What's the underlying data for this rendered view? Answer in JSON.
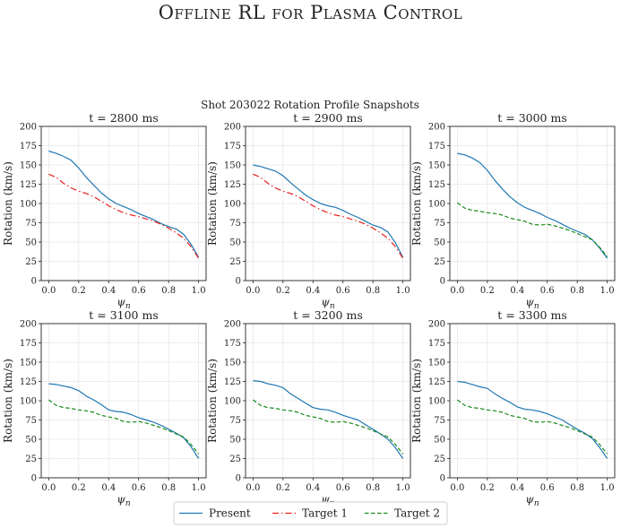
{
  "page_title": "Offline RL for Plasma Control",
  "chart_data": {
    "type": "line",
    "suptitle": "Shot 203022 Rotation Profile Snapshots",
    "xlabel": "ψn",
    "xlabel_base": "ψ",
    "xlabel_sub": "n",
    "ylabel": "Rotation (km/s)",
    "xlim": [
      -0.05,
      1.05
    ],
    "ylim": [
      0,
      200
    ],
    "xticks": [
      0.0,
      0.2,
      0.4,
      0.6,
      0.8,
      1.0
    ],
    "xtick_labels": [
      "0.0",
      "0.2",
      "0.4",
      "0.6",
      "0.8",
      "1.0"
    ],
    "yticks": [
      0,
      25,
      50,
      75,
      100,
      125,
      150,
      175,
      200
    ],
    "grid": true,
    "legend": {
      "placement": "bottom-center",
      "entries": [
        {
          "label": "Present",
          "color": "#1f77b4",
          "style": "solid"
        },
        {
          "label": "Target 1",
          "color": "#e8221e",
          "style": "dashdot"
        },
        {
          "label": "Target 2",
          "color": "#1a8a1a",
          "style": "dashed"
        }
      ]
    },
    "x": [
      0.0,
      0.05,
      0.1,
      0.15,
      0.2,
      0.25,
      0.3,
      0.35,
      0.4,
      0.45,
      0.5,
      0.55,
      0.6,
      0.65,
      0.7,
      0.75,
      0.8,
      0.85,
      0.9,
      0.95,
      1.0
    ],
    "panels": [
      {
        "title": "t = 2800 ms",
        "series": [
          {
            "name": "Present",
            "values": [
              168,
              165,
              161,
              156,
              146,
              134,
              124,
              114,
              106,
              100,
              96,
              92,
              87,
              83,
              79,
              74,
              70,
              67,
              60,
              47,
              30
            ]
          },
          {
            "name": "Target 1",
            "values": [
              138,
              134,
              126,
              120,
              116,
              113,
              109,
              103,
              97,
              92,
              88,
              85,
              83,
              80,
              77,
              73,
              68,
              62,
              55,
              44,
              29
            ]
          }
        ]
      },
      {
        "title": "t = 2900 ms",
        "series": [
          {
            "name": "Present",
            "values": [
              150,
              148,
              145,
              142,
              136,
              127,
              119,
              111,
              105,
              100,
              97,
              95,
              91,
              86,
              82,
              77,
              72,
              69,
              63,
              49,
              30
            ]
          },
          {
            "name": "Target 1",
            "values": [
              138,
              134,
              126,
              120,
              116,
              113,
              109,
              103,
              97,
              92,
              88,
              85,
              83,
              80,
              77,
              73,
              68,
              62,
              55,
              44,
              29
            ]
          }
        ]
      },
      {
        "title": "t = 3000 ms",
        "series": [
          {
            "name": "Present",
            "values": [
              165,
              163,
              159,
              153,
              143,
              130,
              119,
              109,
              101,
              95,
              91,
              87,
              82,
              78,
              73,
              68,
              64,
              60,
              53,
              42,
              29
            ]
          },
          {
            "name": "Target 2",
            "values": [
              101,
              94,
              91,
              90,
              88,
              87,
              85,
              81,
              79,
              77,
              73,
              72,
              73,
              71,
              68,
              65,
              61,
              57,
              53,
              43,
              31
            ]
          }
        ]
      },
      {
        "title": "t = 3100 ms",
        "series": [
          {
            "name": "Present",
            "values": [
              122,
              121,
              119,
              117,
              113,
              106,
              101,
              95,
              88,
              86,
              85,
              82,
              78,
              75,
              72,
              68,
              63,
              58,
              52,
              40,
              25
            ]
          },
          {
            "name": "Target 2",
            "values": [
              101,
              94,
              91,
              90,
              88,
              87,
              85,
              81,
              79,
              77,
              73,
              72,
              73,
              71,
              68,
              65,
              61,
              57,
              53,
              43,
              31
            ]
          }
        ]
      },
      {
        "title": "t = 3200 ms",
        "series": [
          {
            "name": "Present",
            "values": [
              126,
              125,
              122,
              120,
              117,
              109,
              103,
              97,
              91,
              89,
              88,
              85,
              81,
              78,
              75,
              69,
              63,
              57,
              50,
              39,
              25
            ]
          },
          {
            "name": "Target 2",
            "values": [
              101,
              94,
              91,
              90,
              88,
              87,
              85,
              81,
              79,
              77,
              73,
              72,
              73,
              71,
              68,
              65,
              61,
              57,
              53,
              43,
              31
            ]
          }
        ]
      },
      {
        "title": "t = 3300 ms",
        "series": [
          {
            "name": "Present",
            "values": [
              125,
              124,
              121,
              118,
              116,
              109,
              103,
              98,
              92,
              89,
              88,
              86,
              83,
              79,
              75,
              69,
              63,
              58,
              51,
              39,
              25
            ]
          },
          {
            "name": "Target 2",
            "values": [
              101,
              94,
              91,
              90,
              88,
              87,
              85,
              81,
              79,
              77,
              73,
              72,
              73,
              71,
              68,
              65,
              61,
              57,
              53,
              43,
              31
            ]
          }
        ]
      }
    ]
  }
}
